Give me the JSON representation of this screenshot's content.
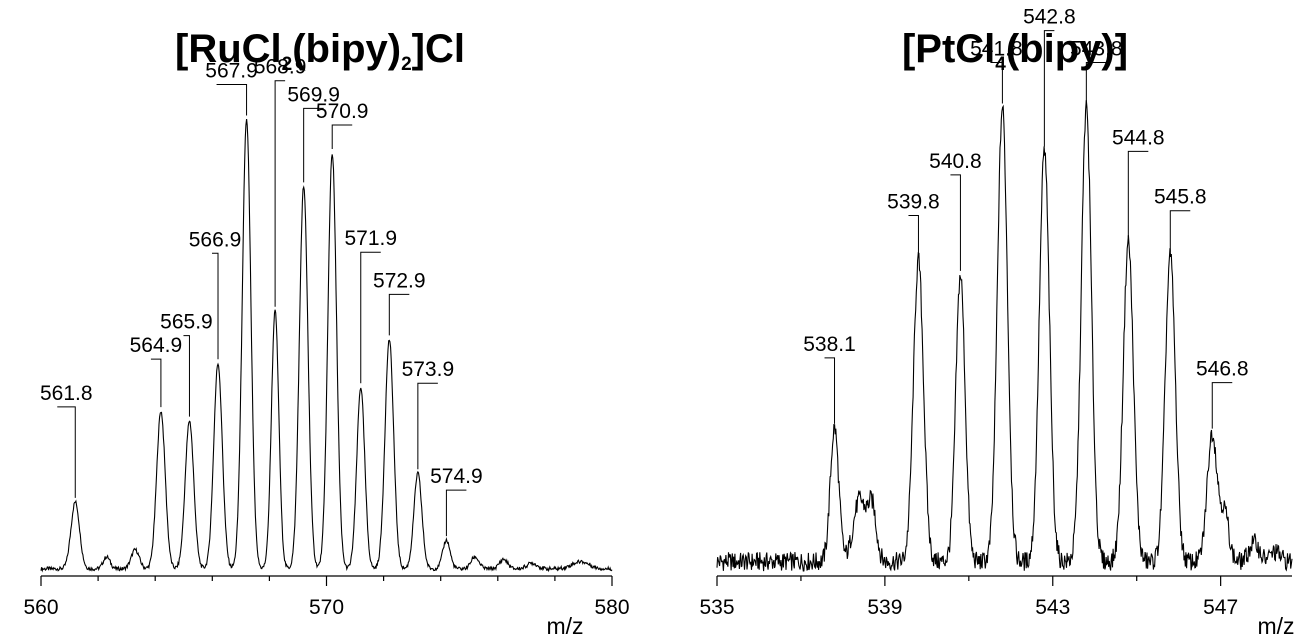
{
  "chart_data": [
    {
      "type": "line",
      "title_parts": [
        "[RuCl",
        "2",
        "(bipy)",
        "2",
        "]Cl"
      ],
      "xlabel": "m/z",
      "ylabel": "",
      "xlim": [
        560,
        580
      ],
      "x_ticks": [
        560,
        570,
        580
      ],
      "x_tick_labels": [
        "560",
        "570",
        "580"
      ],
      "minor_ticks": [
        562,
        564,
        566,
        568,
        572,
        574,
        576,
        578
      ],
      "baseline": 1.5,
      "grid": false,
      "legend": "none",
      "peaks": [
        {
          "x": 561.2,
          "y": 14,
          "w": 0.15,
          "label": "561.8"
        },
        {
          "x": 562.3,
          "y": 2.5,
          "w": 0.12
        },
        {
          "x": 563.3,
          "y": 4,
          "w": 0.14
        },
        {
          "x": 564.2,
          "y": 33,
          "w": 0.15,
          "label": "564.9"
        },
        {
          "x": 565.2,
          "y": 31,
          "w": 0.15,
          "label": "565.9"
        },
        {
          "x": 566.2,
          "y": 43,
          "w": 0.15,
          "label": "566.9"
        },
        {
          "x": 567.2,
          "y": 94,
          "w": 0.15,
          "label": "567.9"
        },
        {
          "x": 568.2,
          "y": 54,
          "w": 0.13,
          "label": "568.9"
        },
        {
          "x": 569.2,
          "y": 80,
          "w": 0.15,
          "label": "569.9"
        },
        {
          "x": 570.2,
          "y": 87,
          "w": 0.15,
          "label": "570.9"
        },
        {
          "x": 571.2,
          "y": 38,
          "w": 0.14,
          "label": "571.9"
        },
        {
          "x": 572.2,
          "y": 48,
          "w": 0.15,
          "label": "572.9"
        },
        {
          "x": 573.2,
          "y": 20,
          "w": 0.14,
          "label": "573.9"
        },
        {
          "x": 574.2,
          "y": 6,
          "w": 0.13,
          "label": "574.9"
        },
        {
          "x": 575.2,
          "y": 2.5,
          "w": 0.14
        },
        {
          "x": 576.2,
          "y": 2,
          "w": 0.14
        },
        {
          "x": 577.2,
          "y": 1.2,
          "w": 0.18
        },
        {
          "x": 578.9,
          "y": 1.5,
          "w": 0.3
        }
      ]
    },
    {
      "type": "line",
      "title_parts": [
        "[PtCl",
        "4",
        "(bipy)]"
      ],
      "xlabel": "m/z",
      "ylabel": "",
      "xlim": [
        535,
        548.7
      ],
      "x_ticks": [
        535,
        539,
        543,
        547
      ],
      "x_tick_labels": [
        "535",
        "539",
        "543",
        "547"
      ],
      "minor_ticks": [
        537,
        541,
        545
      ],
      "baseline": 3,
      "grid": false,
      "legend": "none",
      "peaks": [
        {
          "x": 537.8,
          "y": 28,
          "w": 0.1,
          "label": "538.1"
        },
        {
          "x": 538.4,
          "y": 13,
          "w": 0.15
        },
        {
          "x": 538.7,
          "y": 11,
          "w": 0.1
        },
        {
          "x": 539.8,
          "y": 63,
          "w": 0.12,
          "label": "539.8"
        },
        {
          "x": 540.8,
          "y": 60,
          "w": 0.11,
          "label": "540.8"
        },
        {
          "x": 541.8,
          "y": 95,
          "w": 0.12,
          "label": "541.8"
        },
        {
          "x": 542.8,
          "y": 86,
          "w": 0.12,
          "label": "542.8"
        },
        {
          "x": 543.8,
          "y": 95,
          "w": 0.12,
          "label": "543.8"
        },
        {
          "x": 544.8,
          "y": 67,
          "w": 0.12,
          "label": "544.8"
        },
        {
          "x": 545.8,
          "y": 64,
          "w": 0.12,
          "label": "545.8"
        },
        {
          "x": 546.8,
          "y": 27,
          "w": 0.12,
          "label": "546.8"
        },
        {
          "x": 547.1,
          "y": 10,
          "w": 0.1
        },
        {
          "x": 547.8,
          "y": 4,
          "w": 0.12
        },
        {
          "x": 548.3,
          "y": 2,
          "w": 0.12
        }
      ]
    }
  ]
}
